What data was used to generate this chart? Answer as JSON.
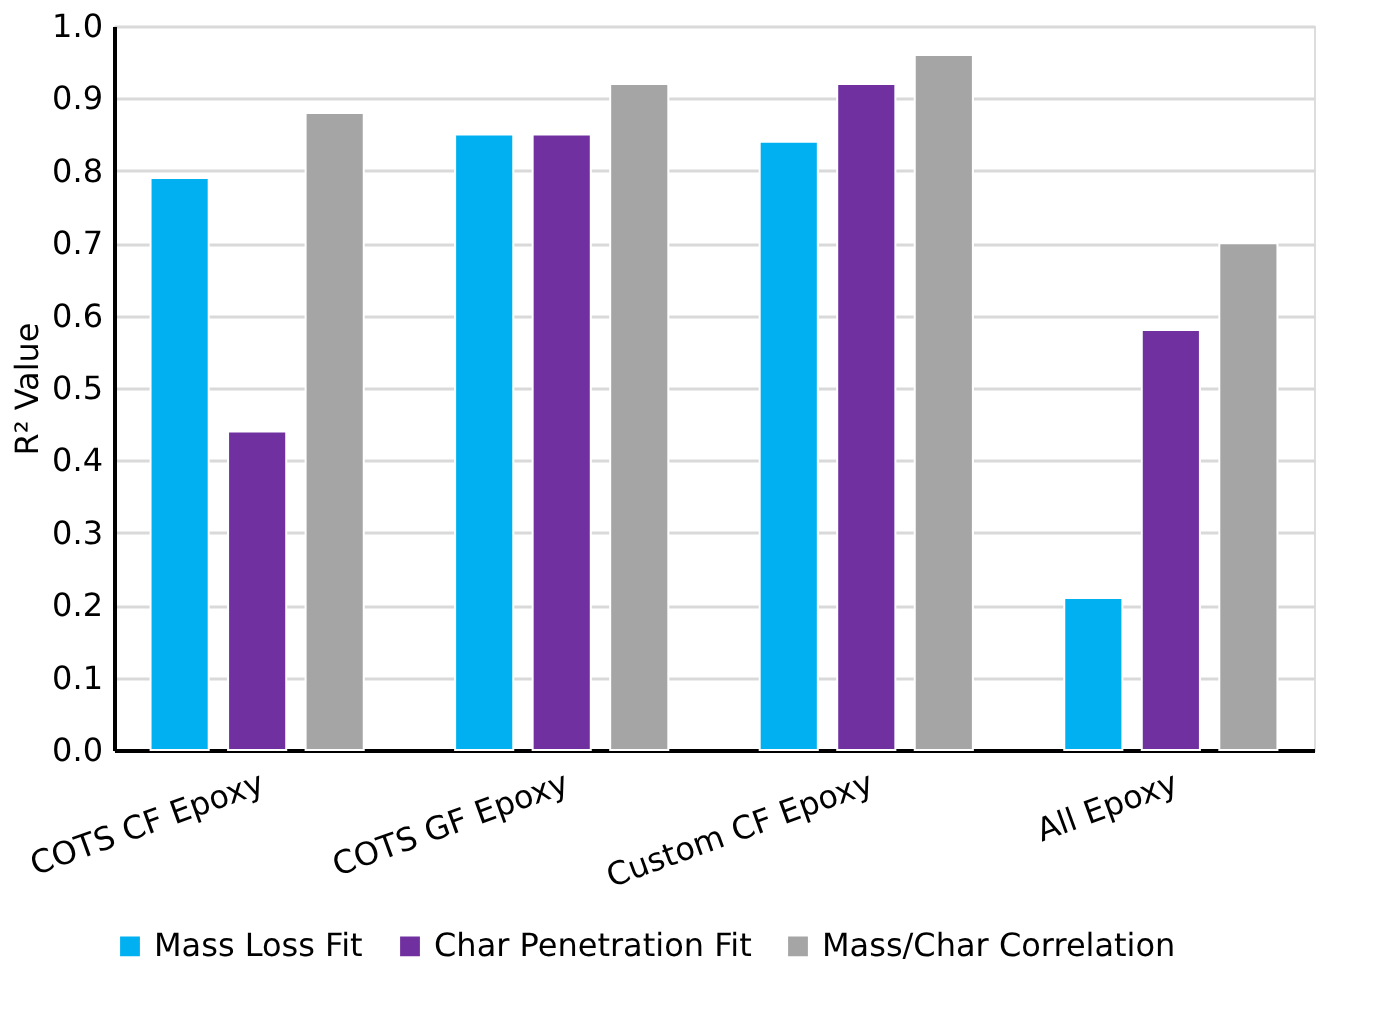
{
  "chart_data": {
    "type": "bar",
    "ylabel": "R² Value",
    "categories": [
      "COTS CF Epoxy",
      "COTS GF Epoxy",
      "Custom CF Epoxy",
      "All Epoxy"
    ],
    "series": [
      {
        "name": "Mass Loss Fit",
        "color": "#00b0f0",
        "values": [
          0.79,
          0.85,
          0.84,
          0.21
        ]
      },
      {
        "name": "Char Penetration Fit",
        "color": "#7030a0",
        "values": [
          0.44,
          0.85,
          0.92,
          0.58
        ]
      },
      {
        "name": "Mass/Char Correlation",
        "color": "#a5a5a5",
        "values": [
          0.88,
          0.92,
          0.96,
          0.7
        ]
      }
    ],
    "ylim": [
      0,
      1.0
    ],
    "yticks": [
      {
        "value": 0,
        "label": "0.0"
      },
      0.1,
      0.2,
      0.3,
      0.4,
      0.5,
      0.6,
      0.7,
      0.8,
      0.9,
      {
        "value": 1.0,
        "label": "1.0"
      }
    ],
    "grid": "y",
    "legend": "bottom"
  }
}
